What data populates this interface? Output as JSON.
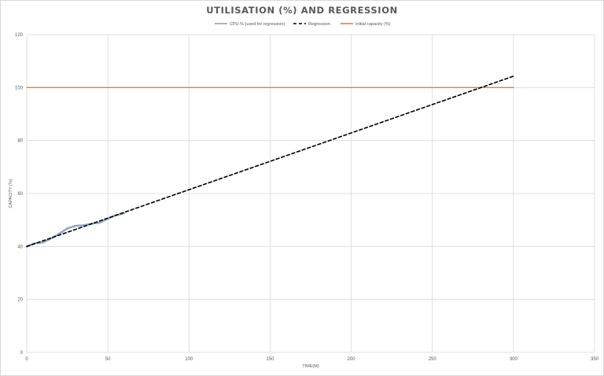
{
  "chart_data": {
    "type": "line",
    "title": "UTILISATION (%) AND REGRESSION",
    "xlabel": "TIME(M)",
    "ylabel": "CAPACITY (%)",
    "xlim": [
      0,
      350
    ],
    "ylim": [
      0,
      120
    ],
    "x_ticks": [
      0,
      50,
      100,
      150,
      200,
      250,
      300,
      350
    ],
    "y_ticks": [
      0,
      20,
      40,
      60,
      80,
      100,
      120
    ],
    "grid": true,
    "legend_position": "top",
    "series": [
      {
        "name": "CPU % (used for regression)",
        "color": "#8ea2c6",
        "style": "solid",
        "x": [
          0,
          5,
          10,
          15,
          20,
          25,
          30,
          35,
          40,
          45,
          50,
          55,
          60
        ],
        "y": [
          40,
          41.2,
          41.5,
          43,
          44.8,
          46.8,
          47.8,
          48,
          48.6,
          49,
          50.5,
          51.8,
          52.5
        ]
      },
      {
        "name": "Regression",
        "color": "#000000",
        "style": "dashed",
        "x": [
          0,
          300
        ],
        "y": [
          40,
          104.3
        ]
      },
      {
        "name": "Initial capacity (%)",
        "color": "#ed7d31",
        "style": "solid",
        "x": [
          0,
          300
        ],
        "y": [
          100,
          100
        ]
      }
    ]
  }
}
